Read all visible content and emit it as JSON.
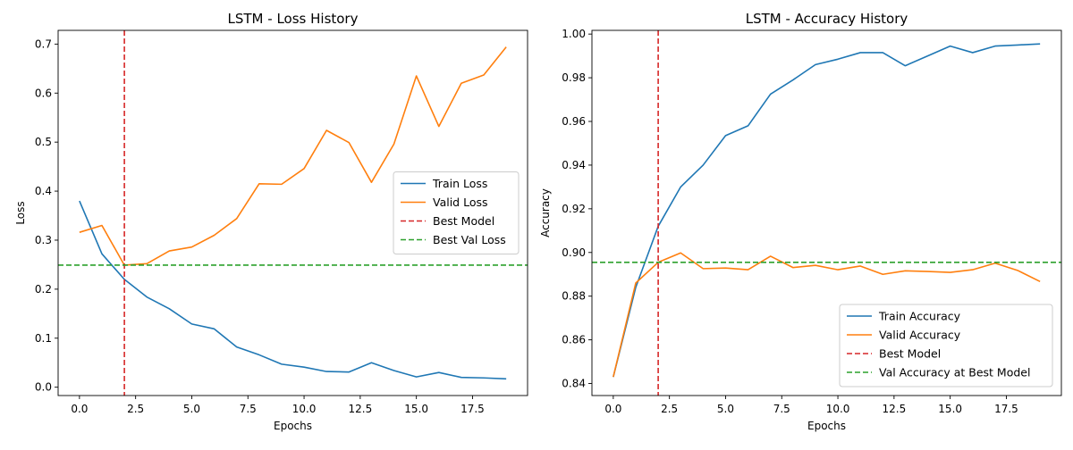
{
  "chart_data": [
    {
      "type": "line",
      "title": "LSTM - Loss History",
      "xlabel": "Epochs",
      "ylabel": "Loss",
      "xlim": [
        -0.95,
        19.95
      ],
      "ylim": [
        -0.017,
        0.728
      ],
      "xticks": [
        0,
        2.5,
        5,
        7.5,
        10,
        12.5,
        15,
        17.5
      ],
      "xtick_labels": [
        "0.0",
        "2.5",
        "5.0",
        "7.5",
        "10.0",
        "12.5",
        "15.0",
        "17.5"
      ],
      "yticks": [
        0.0,
        0.1,
        0.2,
        0.3,
        0.4,
        0.5,
        0.6,
        0.7
      ],
      "ytick_labels": [
        "0.0",
        "0.1",
        "0.2",
        "0.3",
        "0.4",
        "0.5",
        "0.6",
        "0.7"
      ],
      "grid": false,
      "legend_position": "center-right",
      "x": [
        0,
        1,
        2,
        3,
        4,
        5,
        6,
        7,
        8,
        9,
        10,
        11,
        12,
        13,
        14,
        15,
        16,
        17,
        18,
        19
      ],
      "series": [
        {
          "name": "Train Loss",
          "color": "#1f77b4",
          "style": "solid",
          "values": [
            0.38,
            0.272,
            0.22,
            0.184,
            0.16,
            0.129,
            0.119,
            0.082,
            0.066,
            0.047,
            0.041,
            0.032,
            0.031,
            0.05,
            0.034,
            0.021,
            0.03,
            0.02,
            0.019,
            0.017
          ]
        },
        {
          "name": "Valid Loss",
          "color": "#ff7f0e",
          "style": "solid",
          "values": [
            0.316,
            0.33,
            0.249,
            0.252,
            0.278,
            0.286,
            0.31,
            0.344,
            0.415,
            0.414,
            0.446,
            0.524,
            0.499,
            0.418,
            0.496,
            0.635,
            0.532,
            0.62,
            0.637,
            0.694
          ]
        }
      ],
      "reference_lines": [
        {
          "name": "Best Model",
          "orientation": "vertical",
          "value": 2,
          "color": "#d62728",
          "style": "dashed"
        },
        {
          "name": "Best Val Loss",
          "orientation": "horizontal",
          "value": 0.249,
          "color": "#2ca02c",
          "style": "dashed"
        }
      ]
    },
    {
      "type": "line",
      "title": "LSTM - Accuracy History",
      "xlabel": "Epochs",
      "ylabel": "Accuracy",
      "xlim": [
        -0.95,
        19.95
      ],
      "ylim": [
        0.8345,
        1.0017
      ],
      "xticks": [
        0,
        2.5,
        5,
        7.5,
        10,
        12.5,
        15,
        17.5
      ],
      "xtick_labels": [
        "0.0",
        "2.5",
        "5.0",
        "7.5",
        "10.0",
        "12.5",
        "15.0",
        "17.5"
      ],
      "yticks": [
        0.84,
        0.86,
        0.88,
        0.9,
        0.92,
        0.94,
        0.96,
        0.98,
        1.0
      ],
      "ytick_labels": [
        "0.84",
        "0.86",
        "0.88",
        "0.90",
        "0.92",
        "0.94",
        "0.96",
        "0.98",
        "1.00"
      ],
      "grid": false,
      "legend_position": "lower-right",
      "x": [
        0,
        1,
        2,
        3,
        4,
        5,
        6,
        7,
        8,
        9,
        10,
        11,
        12,
        13,
        14,
        15,
        16,
        17,
        18,
        19
      ],
      "series": [
        {
          "name": "Train Accuracy",
          "color": "#1f77b4",
          "style": "solid",
          "values": [
            0.843,
            0.884,
            0.912,
            0.93,
            0.94,
            0.9535,
            0.958,
            0.9725,
            0.979,
            0.986,
            0.9885,
            0.9915,
            0.9915,
            0.9855,
            0.99,
            0.9945,
            0.9915,
            0.9945,
            0.995,
            0.9955
          ]
        },
        {
          "name": "Valid Accuracy",
          "color": "#ff7f0e",
          "style": "solid",
          "values": [
            0.843,
            0.886,
            0.8955,
            0.8998,
            0.8926,
            0.8929,
            0.8921,
            0.8983,
            0.8931,
            0.8941,
            0.8921,
            0.8938,
            0.89,
            0.8916,
            0.8913,
            0.8909,
            0.8921,
            0.8951,
            0.8918,
            0.8867
          ]
        }
      ],
      "reference_lines": [
        {
          "name": "Best Model",
          "orientation": "vertical",
          "value": 2,
          "color": "#d62728",
          "style": "dashed"
        },
        {
          "name": "Val Accuracy at Best Model",
          "orientation": "horizontal",
          "value": 0.8955,
          "color": "#2ca02c",
          "style": "dashed"
        }
      ]
    }
  ]
}
